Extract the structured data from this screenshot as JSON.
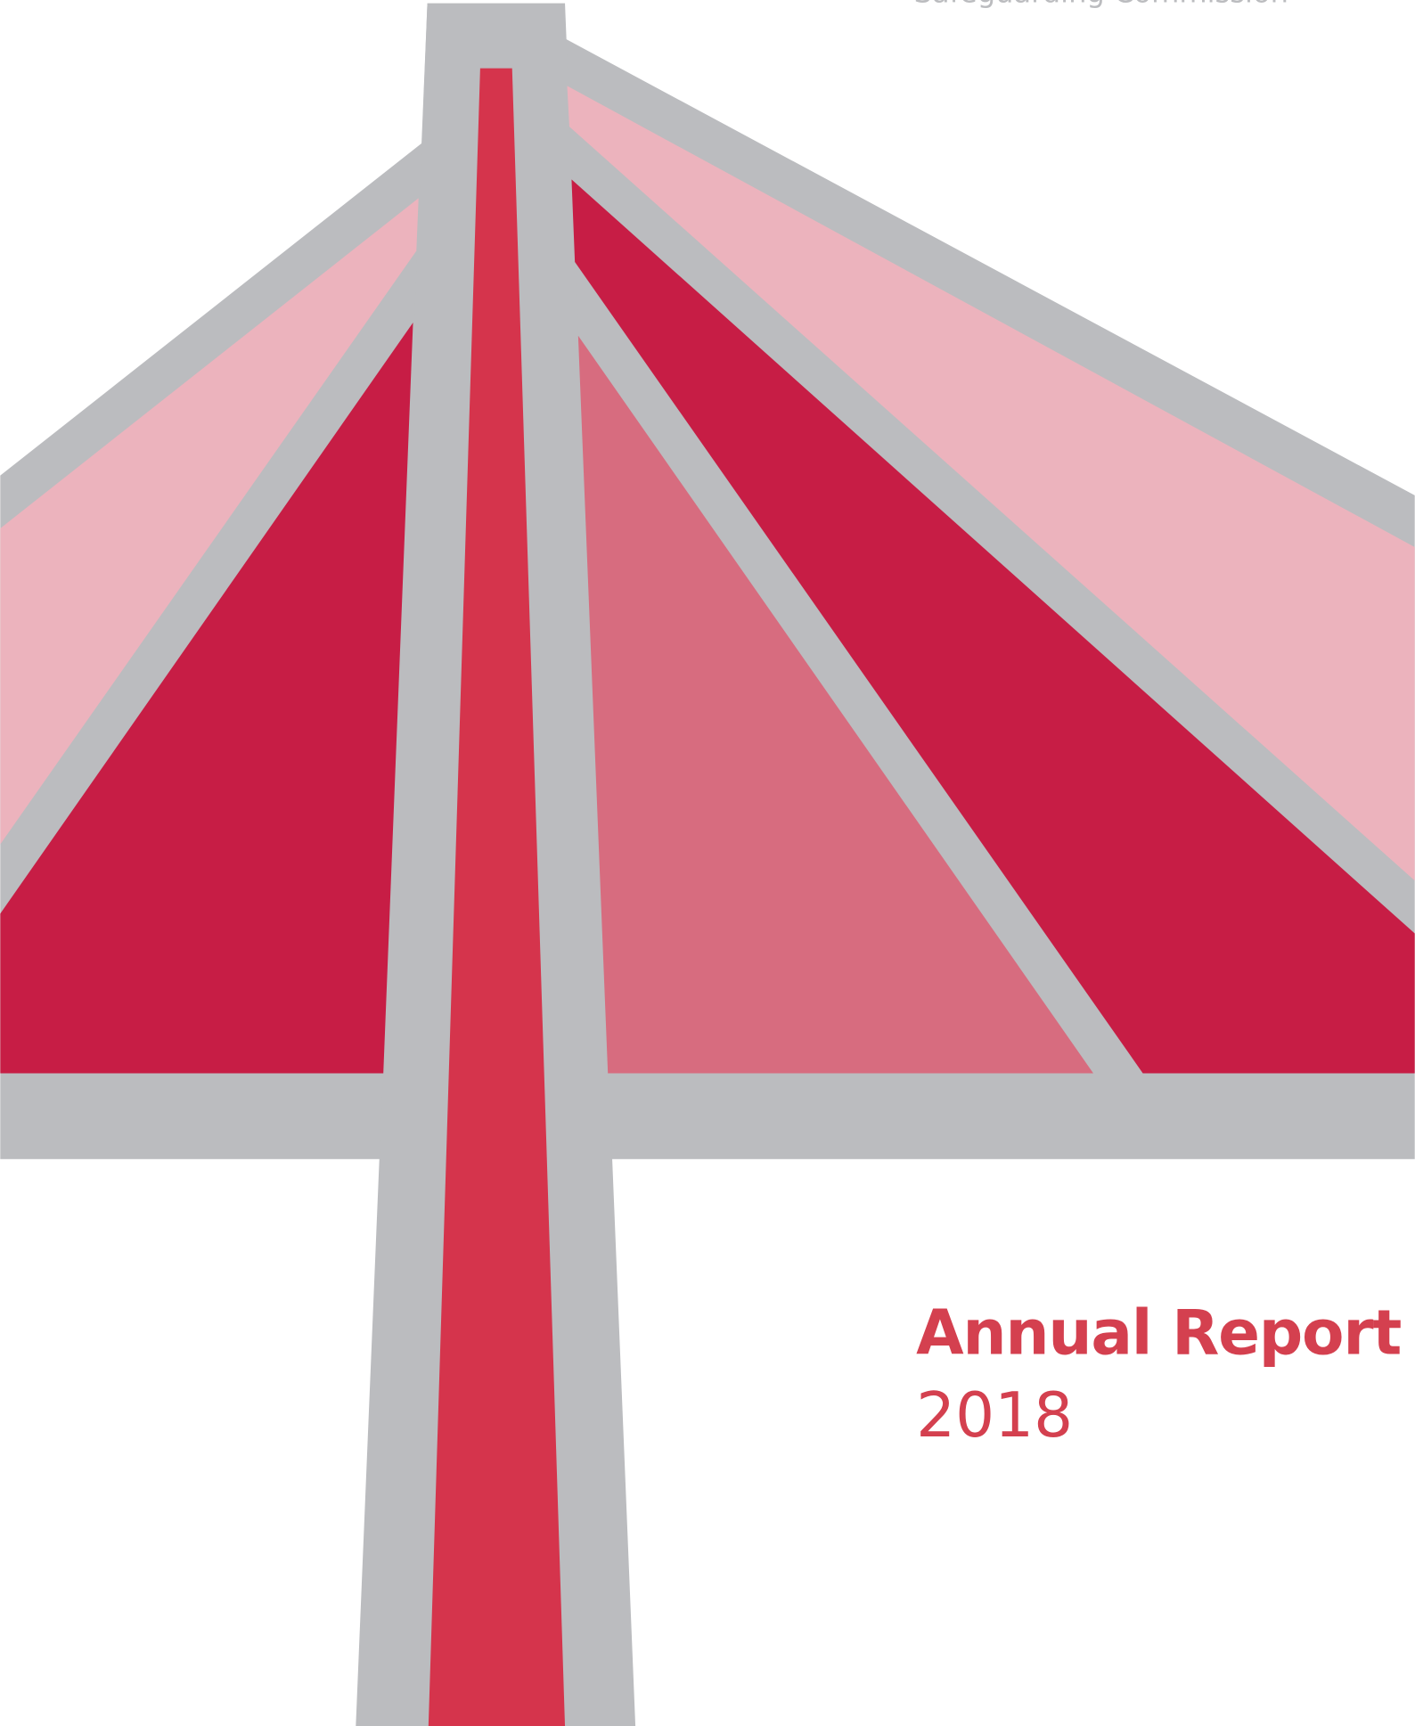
{
  "header": {
    "organization": "Safeguarding Commission"
  },
  "cover": {
    "title": "Annual Report",
    "year": "2018"
  }
}
